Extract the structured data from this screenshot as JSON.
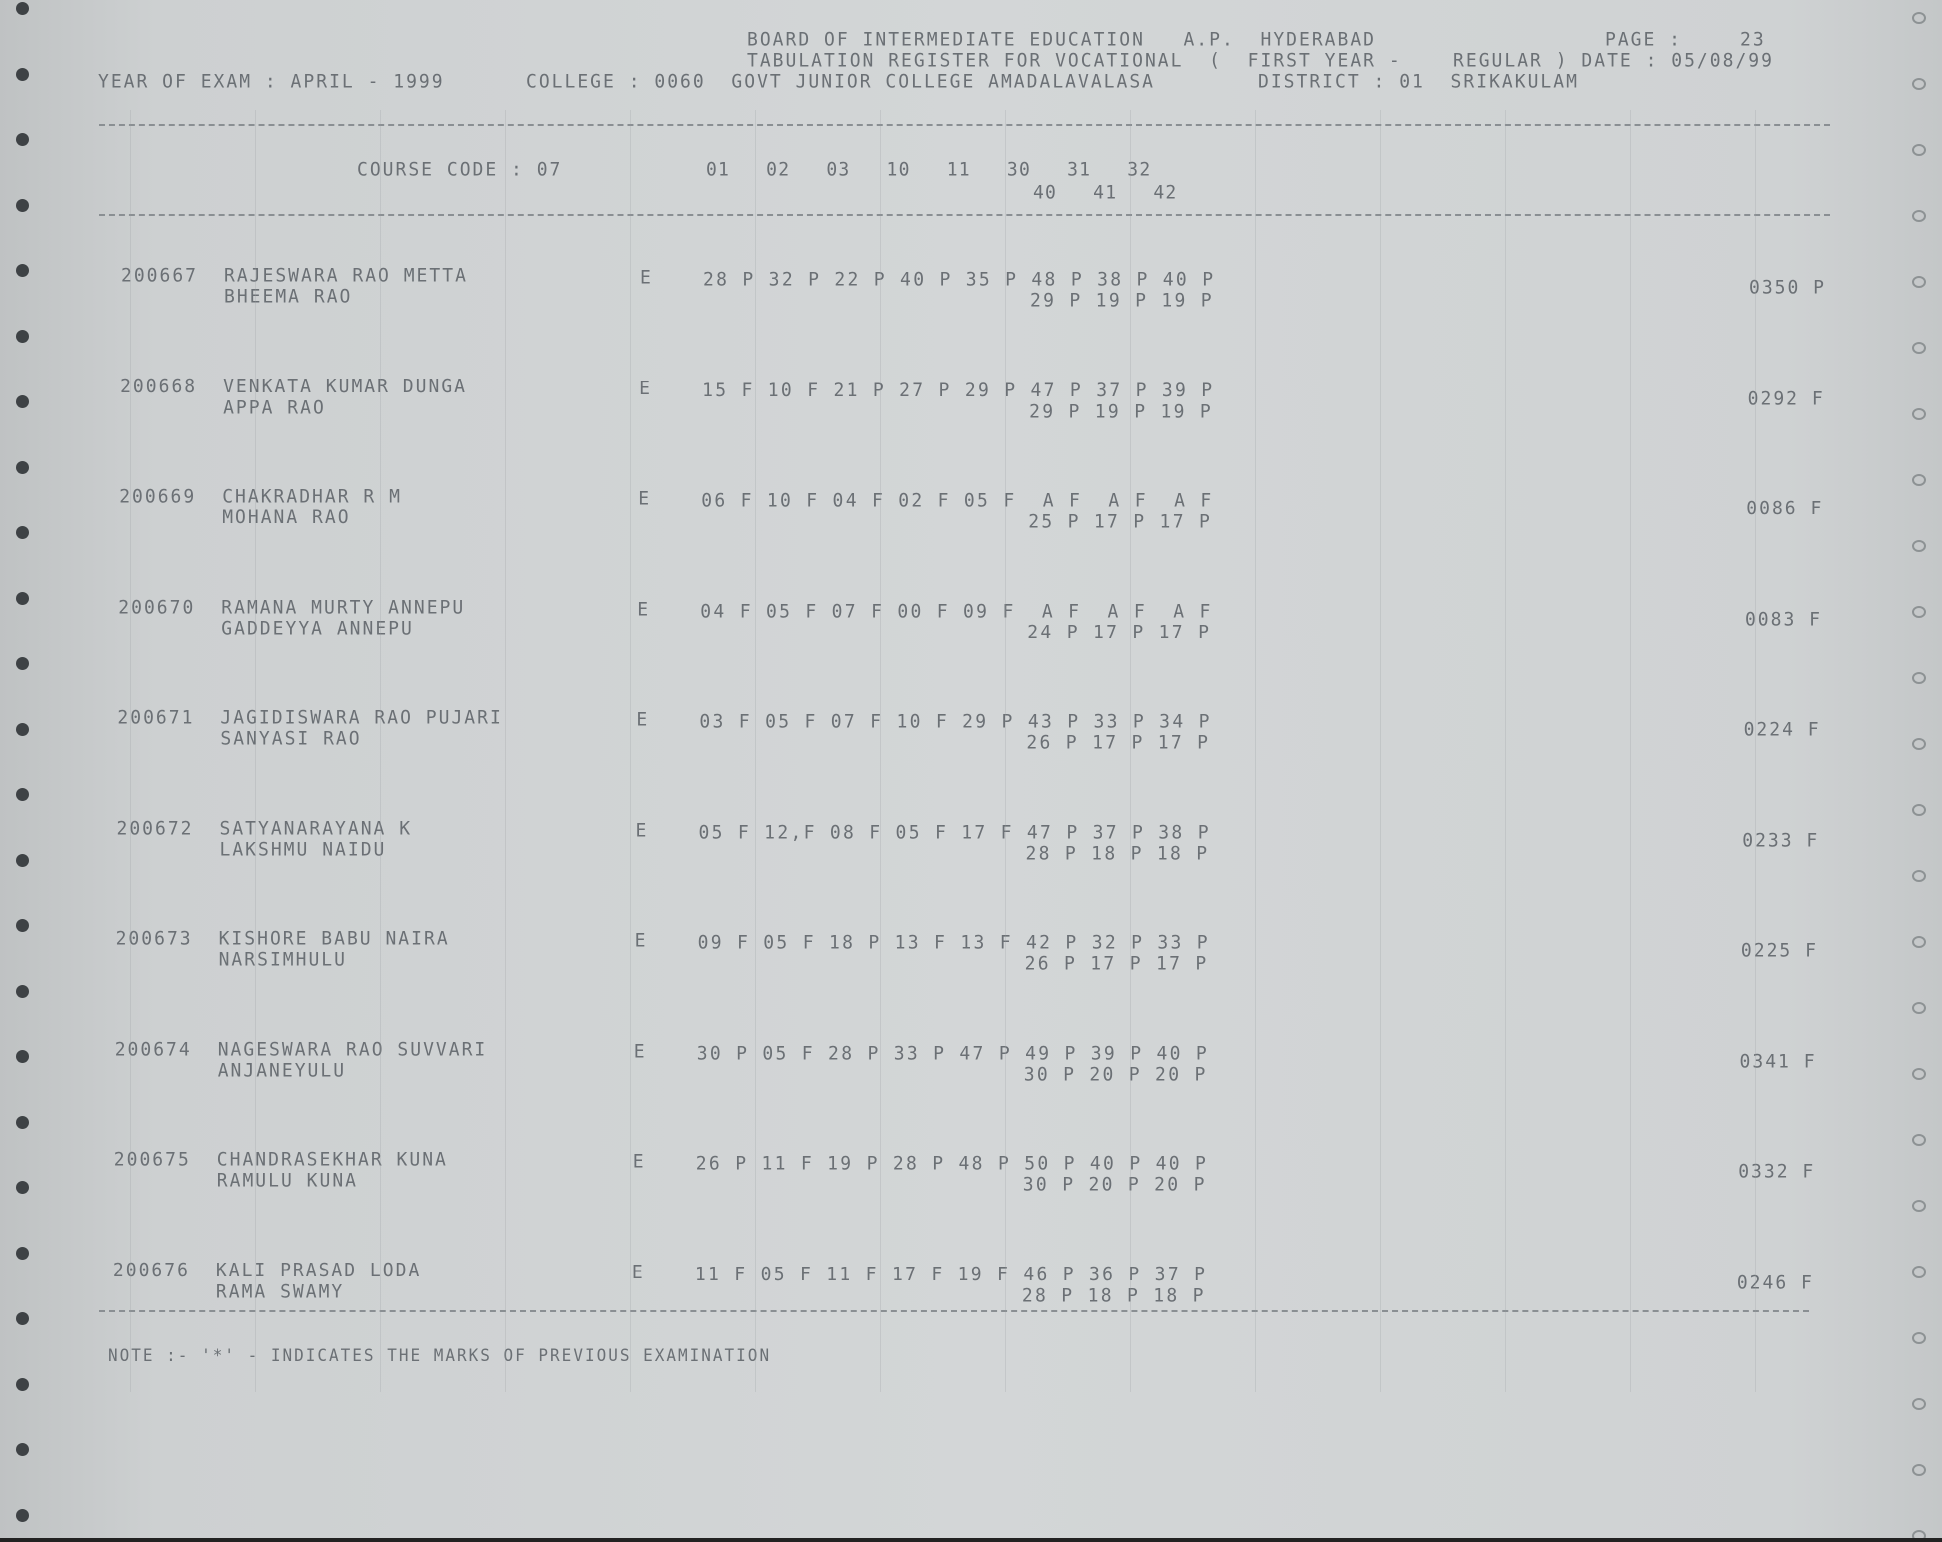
{
  "header": {
    "board": "BOARD OF INTERMEDIATE EDUCATION   A.P.  HYDERABAD",
    "page_label": "PAGE :",
    "page_number": "23",
    "register": "TABULATION REGISTER FOR VOCATIONAL  (  FIRST YEAR -    REGULAR ) DATE : 05/08/99",
    "year_of_exam": "YEAR OF EXAM : APRIL - 1999",
    "college": "COLLEGE : 0060  GOVT JUNIOR COLLEGE AMADALAVALASA",
    "district": "DISTRICT : 01  SRIKAKULAM"
  },
  "columns": {
    "course_code": "COURSE CODE : 07",
    "line1": "01   02   03   10   11   30   31   32",
    "line2": "40   41   42"
  },
  "rows": [
    {
      "roll": "200667",
      "name1": "RAJESWARA RAO METTA",
      "name2": "BHEEMA RAO",
      "medium": "E",
      "marks1": "28 P 32 P 22 P 40 P 35 P 48 P 38 P 40 P",
      "marks2": "29 P 19 P 19 P",
      "total": "0350 P"
    },
    {
      "roll": "200668",
      "name1": "VENKATA KUMAR DUNGA",
      "name2": "APPA RAO",
      "medium": "E",
      "marks1": "15 F 10 F 21 P 27 P 29 P 47 P 37 P 39 P",
      "marks2": "29 P 19 P 19 P",
      "total": "0292 F"
    },
    {
      "roll": "200669",
      "name1": "CHAKRADHAR R M",
      "name2": "MOHANA RAO",
      "medium": "E",
      "marks1": "06 F 10 F 04 F 02 F 05 F  A F  A F  A F",
      "marks2": "25 P 17 P 17 P",
      "total": "0086 F"
    },
    {
      "roll": "200670",
      "name1": "RAMANA MURTY ANNEPU",
      "name2": "GADDEYYA ANNEPU",
      "medium": "E",
      "marks1": "04 F 05 F 07 F 00 F 09 F  A F  A F  A F",
      "marks2": "24 P 17 P 17 P",
      "total": "0083 F"
    },
    {
      "roll": "200671",
      "name1": "JAGIDISWARA RAO PUJARI",
      "name2": "SANYASI RAO",
      "medium": "E",
      "marks1": "03 F 05 F 07 F 10 F 29 P 43 P 33 P 34 P",
      "marks2": "26 P 17 P 17 P",
      "total": "0224 F"
    },
    {
      "roll": "200672",
      "name1": "SATYANARAYANA K",
      "name2": "LAKSHMU NAIDU",
      "medium": "E",
      "marks1": "05 F 12,F 08 F 05 F 17 F 47 P 37 P 38 P",
      "marks2": "28 P 18 P 18 P",
      "total": "0233 F"
    },
    {
      "roll": "200673",
      "name1": "KISHORE BABU NAIRA",
      "name2": "NARSIMHULU",
      "medium": "E",
      "marks1": "09 F 05 F 18 P 13 F 13 F 42 P 32 P 33 P",
      "marks2": "26 P 17 P 17 P",
      "total": "0225 F"
    },
    {
      "roll": "200674",
      "name1": "NAGESWARA RAO SUVVARI",
      "name2": "ANJANEYULU",
      "medium": "E",
      "marks1": "30 P 05 F 28 P 33 P 47 P 49 P 39 P 40 P",
      "marks2": "30 P 20 P 20 P",
      "total": "0341 F"
    },
    {
      "roll": "200675",
      "name1": "CHANDRASEKHAR KUNA",
      "name2": "RAMULU KUNA",
      "medium": "E",
      "marks1": "26 P 11 F 19 P 28 P 48 P 50 P 40 P 40 P",
      "marks2": "30 P 20 P 20 P",
      "total": "0332 F"
    },
    {
      "roll": "200676",
      "name1": "KALI PRASAD LODA",
      "name2": "RAMA SWAMY",
      "medium": "E",
      "marks1": "11 F 05 F 11 F 17 F 19 F 46 P 36 P 37 P",
      "marks2": "28 P 18 P 18 P",
      "total": "0246 F"
    }
  ],
  "note": "NOTE :- '*' - INDICATES THE MARKS OF PREVIOUS EXAMINATION"
}
